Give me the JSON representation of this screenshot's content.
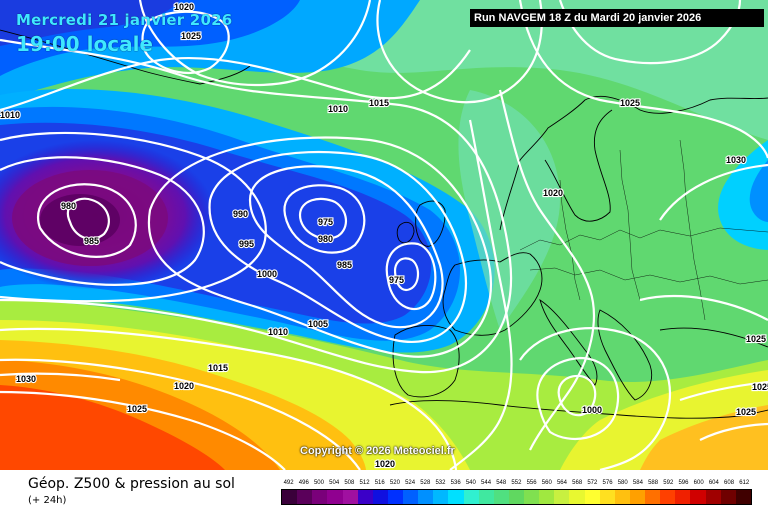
{
  "header": {
    "date": "Mercredi 21 janvier 2026",
    "time": "19:00 locale",
    "run": "Run NAVGEM 18 Z du Mardi 20 janvier 2026"
  },
  "copyright": "Copyright © 2026 Meteociel.fr",
  "footer": {
    "title": "Géop. Z500 & pression au sol",
    "subtitle": "(+ 24h)"
  },
  "scale": {
    "labels": [
      "492",
      "496",
      "500",
      "504",
      "508",
      "512",
      "516",
      "520",
      "524",
      "528",
      "532",
      "536",
      "540",
      "544",
      "548",
      "552",
      "556",
      "560",
      "564",
      "568",
      "572",
      "576",
      "580",
      "584",
      "588",
      "592",
      "596",
      "600",
      "604",
      "608",
      "612"
    ],
    "colors": [
      "#3a003a",
      "#5a005a",
      "#7a007a",
      "#900090",
      "#a010a0",
      "#3b00c8",
      "#1010e0",
      "#0030ff",
      "#0060ff",
      "#0090ff",
      "#00b8ff",
      "#00e0ff",
      "#30f0d0",
      "#40e8a0",
      "#50e080",
      "#60d860",
      "#80e050",
      "#a0e840",
      "#c8f040",
      "#e8f830",
      "#ffff30",
      "#ffe020",
      "#ffc010",
      "#ffa000",
      "#ff7000",
      "#ff4000",
      "#f02000",
      "#d00000",
      "#a00000",
      "#700000",
      "#400000"
    ]
  },
  "isobars": {
    "labels": [
      "1020",
      "1025",
      "1010",
      "1010",
      "1015",
      "1025",
      "1030",
      "1020",
      "990",
      "975",
      "980",
      "985",
      "980",
      "975",
      "985",
      "995",
      "1000",
      "1005",
      "1010",
      "1015",
      "1020",
      "1030",
      "1025",
      "1000",
      "1025",
      "1020",
      "1025",
      "1025"
    ]
  },
  "colors": {
    "low_core": "#7a0080",
    "deep_blue": "#0a24d8",
    "mid_blue": "#0070ff",
    "cyan": "#00d8ff",
    "green": "#50d870",
    "yellow": "#f0f040",
    "orange": "#ff9000",
    "red": "#ff3000"
  }
}
